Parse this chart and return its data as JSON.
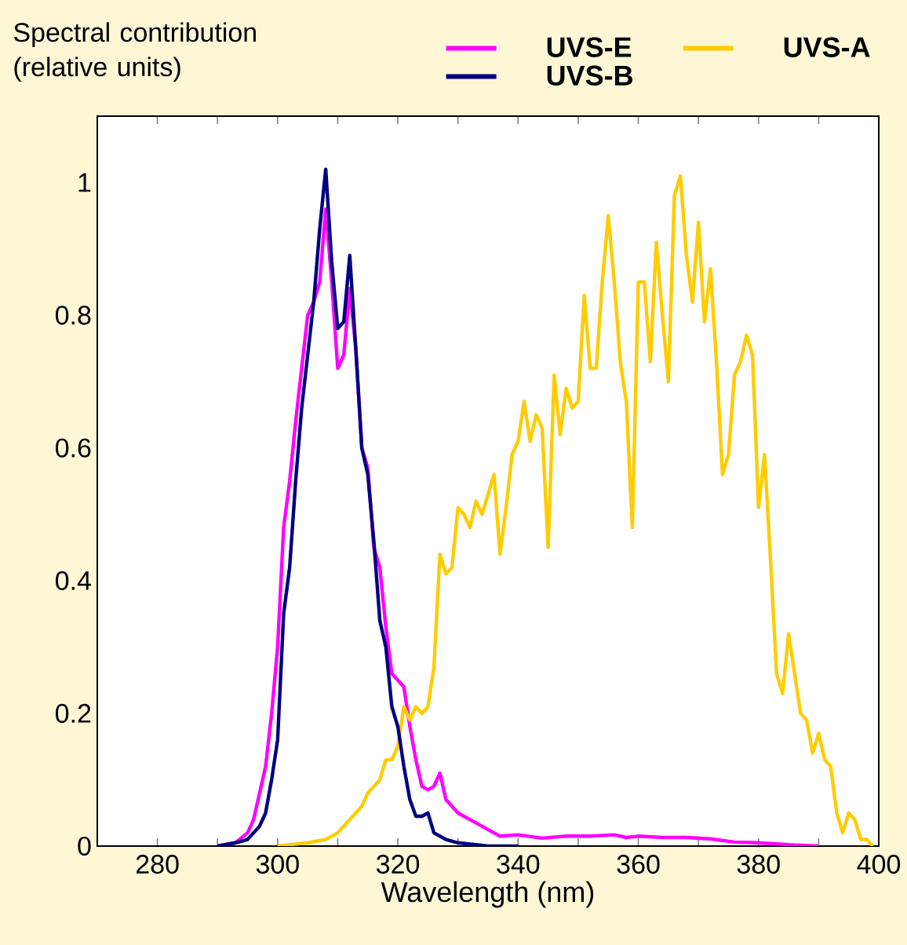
{
  "chart_data": {
    "type": "line",
    "ylabel": "Spectral contribution (relative units)",
    "xlabel": "Wavelength (nm)",
    "legend": "top right",
    "xlim": [
      270,
      400
    ],
    "ylim": [
      0,
      1.1
    ],
    "xticks": [
      280,
      {
        "value": 290,
        "label": null
      },
      300,
      {
        "value": 310,
        "label": null
      },
      320,
      {
        "value": 330,
        "label": null
      },
      340,
      {
        "value": 350,
        "label": null
      },
      360,
      {
        "value": 370,
        "label": null
      },
      380,
      {
        "value": 390,
        "label": null
      },
      400
    ],
    "yticks": [
      0,
      0.2,
      0.4,
      0.6,
      0.8,
      1
    ],
    "series": [
      {
        "name": "UVS-E",
        "color": "#ff00ff",
        "x": [
          290,
          293,
          295,
          296,
          297,
          298,
          299,
          300,
          301,
          302,
          303,
          304,
          305,
          306,
          307,
          308,
          309,
          310,
          311,
          312,
          313,
          314,
          315,
          316,
          317,
          318,
          319,
          320,
          321,
          322,
          323,
          324,
          325,
          326,
          327,
          328,
          329,
          330,
          331,
          332,
          333,
          334,
          335,
          337,
          340,
          344,
          348,
          352,
          356,
          358,
          360,
          364,
          368,
          372,
          376,
          380,
          385,
          390
        ],
        "values": [
          0,
          0.005,
          0.02,
          0.04,
          0.08,
          0.12,
          0.2,
          0.3,
          0.48,
          0.55,
          0.64,
          0.72,
          0.8,
          0.82,
          0.85,
          0.96,
          0.85,
          0.72,
          0.74,
          0.84,
          0.75,
          0.6,
          0.57,
          0.45,
          0.42,
          0.33,
          0.26,
          0.25,
          0.24,
          0.18,
          0.13,
          0.09,
          0.085,
          0.09,
          0.11,
          0.07,
          0.06,
          0.05,
          0.045,
          0.04,
          0.035,
          0.03,
          0.025,
          0.015,
          0.017,
          0.012,
          0.015,
          0.015,
          0.017,
          0.013,
          0.015,
          0.013,
          0.013,
          0.011,
          0.006,
          0.005,
          0.002,
          0
        ]
      },
      {
        "name": "UVS-A",
        "color": "#ffcc00",
        "x": [
          300,
          305,
          308,
          310,
          312,
          314,
          315,
          316,
          317,
          318,
          319,
          320,
          321,
          322,
          323,
          324,
          325,
          326,
          327,
          328,
          329,
          330,
          331,
          332,
          333,
          334,
          335,
          336,
          337,
          338,
          339,
          340,
          341,
          342,
          343,
          344,
          345,
          346,
          347,
          348,
          349,
          350,
          351,
          352,
          353,
          354,
          355,
          356,
          357,
          358,
          359,
          360,
          361,
          362,
          363,
          364,
          365,
          366,
          367,
          368,
          369,
          370,
          371,
          372,
          373,
          374,
          375,
          376,
          377,
          378,
          379,
          380,
          381,
          382,
          383,
          384,
          385,
          386,
          387,
          388,
          389,
          390,
          391,
          392,
          393,
          394,
          395,
          396,
          397,
          398,
          399
        ],
        "values": [
          0,
          0.005,
          0.01,
          0.02,
          0.04,
          0.06,
          0.08,
          0.09,
          0.1,
          0.13,
          0.13,
          0.15,
          0.21,
          0.19,
          0.21,
          0.2,
          0.21,
          0.27,
          0.44,
          0.41,
          0.42,
          0.51,
          0.5,
          0.48,
          0.52,
          0.5,
          0.53,
          0.56,
          0.44,
          0.51,
          0.59,
          0.61,
          0.67,
          0.61,
          0.65,
          0.63,
          0.45,
          0.71,
          0.62,
          0.69,
          0.66,
          0.67,
          0.83,
          0.72,
          0.72,
          0.85,
          0.95,
          0.85,
          0.73,
          0.67,
          0.48,
          0.85,
          0.85,
          0.73,
          0.91,
          0.8,
          0.7,
          0.98,
          1.01,
          0.89,
          0.82,
          0.94,
          0.79,
          0.87,
          0.73,
          0.56,
          0.59,
          0.71,
          0.73,
          0.77,
          0.74,
          0.51,
          0.59,
          0.43,
          0.26,
          0.23,
          0.32,
          0.26,
          0.2,
          0.19,
          0.14,
          0.17,
          0.13,
          0.12,
          0.05,
          0.02,
          0.05,
          0.04,
          0.01,
          0.01,
          0
        ]
      },
      {
        "name": "UVS-B",
        "color": "#000080",
        "x": [
          290,
          293,
          295,
          297,
          298,
          299,
          300,
          301,
          302,
          303,
          304,
          305,
          306,
          307,
          308,
          309,
          310,
          311,
          312,
          313,
          314,
          315,
          316,
          317,
          318,
          319,
          320,
          321,
          322,
          323,
          324,
          325,
          326,
          327,
          328,
          330,
          335,
          340
        ],
        "values": [
          0,
          0.005,
          0.01,
          0.03,
          0.05,
          0.1,
          0.16,
          0.35,
          0.42,
          0.55,
          0.66,
          0.74,
          0.82,
          0.93,
          1.02,
          0.88,
          0.78,
          0.79,
          0.89,
          0.75,
          0.6,
          0.56,
          0.46,
          0.34,
          0.3,
          0.21,
          0.18,
          0.12,
          0.07,
          0.045,
          0.045,
          0.05,
          0.02,
          0.015,
          0.01,
          0.005,
          0,
          0
        ]
      }
    ]
  }
}
